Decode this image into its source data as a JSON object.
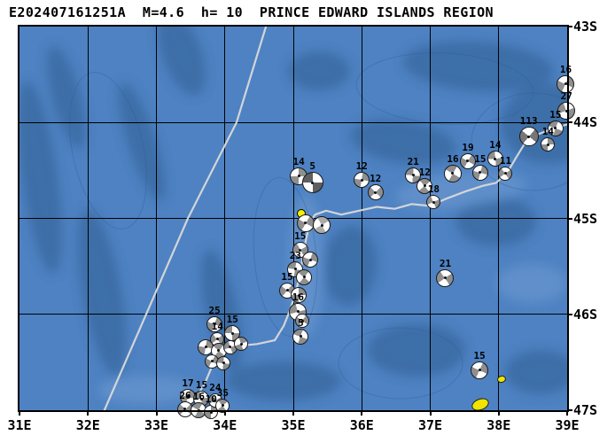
{
  "title": "E202407161251A  M=4.6  h= 10  PRINCE EDWARD ISLANDS REGION",
  "map": {
    "lon_min": 31,
    "lon_max": 39,
    "lat_min": 43,
    "lat_max": 47,
    "x_ticks": [
      {
        "lon": 31,
        "label": "31E"
      },
      {
        "lon": 32,
        "label": "32E"
      },
      {
        "lon": 33,
        "label": "33E"
      },
      {
        "lon": 34,
        "label": "34E"
      },
      {
        "lon": 35,
        "label": "35E"
      },
      {
        "lon": 36,
        "label": "36E"
      },
      {
        "lon": 37,
        "label": "37E"
      },
      {
        "lon": 38,
        "label": "38E"
      },
      {
        "lon": 39,
        "label": "39E"
      }
    ],
    "y_ticks": [
      {
        "lat": 43,
        "label": "43S"
      },
      {
        "lat": 44,
        "label": "44S"
      },
      {
        "lat": 45,
        "label": "45S"
      },
      {
        "lat": 46,
        "label": "46S"
      },
      {
        "lat": 47,
        "label": "47S"
      }
    ],
    "colors": {
      "ocean": "#4e82c2",
      "bathy_dark": "#38679f",
      "bathy_light": "#6f9bd2",
      "grid": "#000000",
      "ridge_line": "#d9d9d9",
      "frame": "#000000",
      "event": "#f8ef00",
      "island": "#f0e400",
      "ball_outline": "#1a1a1a",
      "label": "#000000"
    },
    "event_marker": {
      "lon": 35.12,
      "lat": 44.95,
      "size": 10
    },
    "islands": [
      {
        "name": "marion-island",
        "lon": 37.72,
        "lat": 46.93,
        "w": 18,
        "h": 11,
        "rot": -20
      },
      {
        "name": "prince-edward-island",
        "lon": 38.03,
        "lat": 46.67,
        "w": 8,
        "h": 6,
        "rot": -15
      }
    ],
    "ridge_lines": [
      {
        "name": "fracture-zone",
        "points": [
          [
            34.6,
            43.0
          ],
          [
            34.17,
            44.0
          ],
          [
            33.46,
            45.0
          ],
          [
            32.85,
            46.0
          ],
          [
            32.24,
            47.0
          ]
        ]
      },
      {
        "name": "plate-boundary",
        "points": [
          [
            33.37,
            47.0
          ],
          [
            33.59,
            46.86
          ],
          [
            33.72,
            46.7
          ],
          [
            33.82,
            46.53
          ],
          [
            33.95,
            46.4
          ],
          [
            34.18,
            46.33
          ],
          [
            34.47,
            46.31
          ],
          [
            34.73,
            46.27
          ],
          [
            34.86,
            46.12
          ],
          [
            34.95,
            45.96
          ],
          [
            35.03,
            45.79
          ],
          [
            35.09,
            45.6
          ],
          [
            35.14,
            45.4
          ],
          [
            35.19,
            45.2
          ],
          [
            35.25,
            45.03
          ],
          [
            35.32,
            44.96
          ],
          [
            35.48,
            44.92
          ],
          [
            35.7,
            44.96
          ],
          [
            35.96,
            44.92
          ],
          [
            36.22,
            44.88
          ],
          [
            36.48,
            44.9
          ],
          [
            36.73,
            44.85
          ],
          [
            36.99,
            44.87
          ],
          [
            37.25,
            44.79
          ],
          [
            37.51,
            44.72
          ],
          [
            37.77,
            44.66
          ],
          [
            37.96,
            44.63
          ],
          [
            38.12,
            44.53
          ],
          [
            38.25,
            44.37
          ],
          [
            38.38,
            44.22
          ],
          [
            38.55,
            44.13
          ],
          [
            38.77,
            44.07
          ],
          [
            39.0,
            44.02
          ]
        ]
      }
    ],
    "beachballs": [
      {
        "label": "16",
        "lon": 38.98,
        "lat": 43.6,
        "size": 20,
        "rot": 25,
        "tone": "#8f8f8f"
      },
      {
        "label": "27",
        "lon": 38.99,
        "lat": 43.88,
        "size": 20,
        "rot": 70,
        "tone": "#8f8f8f"
      },
      {
        "label": "15",
        "lon": 38.83,
        "lat": 44.06,
        "size": 18,
        "rot": 110,
        "tone": "#8f8f8f"
      },
      {
        "label": "113",
        "lon": 38.44,
        "lat": 44.15,
        "size": 22,
        "rot": 40,
        "tone": "#777777"
      },
      {
        "label": "14",
        "lon": 38.72,
        "lat": 44.23,
        "size": 16,
        "rot": 0,
        "tone": "#8f8f8f"
      },
      {
        "label": "19",
        "lon": 37.55,
        "lat": 44.4,
        "size": 18,
        "rot": 30,
        "tone": "#8f8f8f"
      },
      {
        "label": "14",
        "lon": 37.95,
        "lat": 44.38,
        "size": 18,
        "rot": 85,
        "tone": "#8f8f8f"
      },
      {
        "label": "16",
        "lon": 37.33,
        "lat": 44.53,
        "size": 20,
        "rot": 120,
        "tone": "#8f8f8f"
      },
      {
        "label": "15",
        "lon": 37.73,
        "lat": 44.52,
        "size": 18,
        "rot": 15,
        "tone": "#8f8f8f"
      },
      {
        "label": "11",
        "lon": 38.1,
        "lat": 44.53,
        "size": 16,
        "rot": 55,
        "tone": "#8f8f8f"
      },
      {
        "label": "21",
        "lon": 36.75,
        "lat": 44.55,
        "size": 18,
        "rot": 95,
        "tone": "#8f8f8f"
      },
      {
        "label": "12",
        "lon": 36.92,
        "lat": 44.66,
        "size": 18,
        "rot": 140,
        "tone": "#8f8f8f"
      },
      {
        "label": "18",
        "lon": 37.05,
        "lat": 44.83,
        "size": 16,
        "rot": 65,
        "tone": "#8f8f8f"
      },
      {
        "label": "12",
        "lon": 36.0,
        "lat": 44.6,
        "size": 18,
        "rot": 10,
        "tone": "#8f8f8f"
      },
      {
        "label": "12",
        "lon": 36.2,
        "lat": 44.73,
        "size": 18,
        "rot": 45,
        "tone": "#8f8f8f"
      },
      {
        "label": "14",
        "lon": 35.08,
        "lat": 44.56,
        "size": 20,
        "rot": 0,
        "tone": "#8f8f8f"
      },
      {
        "label": "5",
        "lon": 35.28,
        "lat": 44.63,
        "size": 24,
        "rot": 90,
        "tone": "#5f5f5f"
      },
      {
        "label": "",
        "lon": 35.18,
        "lat": 45.05,
        "size": 20,
        "rot": 30,
        "tone": "#8f8f8f"
      },
      {
        "label": "",
        "lon": 35.42,
        "lat": 45.07,
        "size": 20,
        "rot": 150,
        "tone": "#ababab"
      },
      {
        "label": "15",
        "lon": 35.1,
        "lat": 45.33,
        "size": 18,
        "rot": 60,
        "tone": "#8f8f8f"
      },
      {
        "label": "",
        "lon": 35.25,
        "lat": 45.43,
        "size": 18,
        "rot": 20,
        "tone": "#8f8f8f"
      },
      {
        "label": "23",
        "lon": 35.03,
        "lat": 45.53,
        "size": 18,
        "rot": 100,
        "tone": "#8f8f8f"
      },
      {
        "label": "",
        "lon": 35.16,
        "lat": 45.61,
        "size": 18,
        "rot": 130,
        "tone": "#8f8f8f"
      },
      {
        "label": "15",
        "lon": 34.91,
        "lat": 45.75,
        "size": 18,
        "rot": 40,
        "tone": "#8f8f8f"
      },
      {
        "label": "",
        "lon": 35.08,
        "lat": 45.8,
        "size": 18,
        "rot": 0,
        "tone": "#8f8f8f"
      },
      {
        "label": "16",
        "lon": 35.07,
        "lat": 45.97,
        "size": 20,
        "rot": 75,
        "tone": "#8f8f8f"
      },
      {
        "label": "",
        "lon": 35.13,
        "lat": 46.07,
        "size": 16,
        "rot": 35,
        "tone": "#8f8f8f"
      },
      {
        "label": "5",
        "lon": 35.11,
        "lat": 46.23,
        "size": 18,
        "rot": 110,
        "tone": "#8f8f8f"
      },
      {
        "label": "25",
        "lon": 33.85,
        "lat": 46.1,
        "size": 18,
        "rot": 20,
        "tone": "#8f8f8f"
      },
      {
        "label": "15",
        "lon": 34.11,
        "lat": 46.2,
        "size": 18,
        "rot": 90,
        "tone": "#8f8f8f"
      },
      {
        "label": "14",
        "lon": 33.89,
        "lat": 46.26,
        "size": 16,
        "rot": 50,
        "tone": "#8f8f8f"
      },
      {
        "label": "",
        "lon": 33.72,
        "lat": 46.34,
        "size": 18,
        "rot": 10,
        "tone": "#8f8f8f"
      },
      {
        "label": "",
        "lon": 33.91,
        "lat": 46.38,
        "size": 18,
        "rot": 130,
        "tone": "#8f8f8f"
      },
      {
        "label": "",
        "lon": 34.08,
        "lat": 46.34,
        "size": 16,
        "rot": 70,
        "tone": "#8f8f8f"
      },
      {
        "label": "",
        "lon": 34.24,
        "lat": 46.31,
        "size": 16,
        "rot": 160,
        "tone": "#8f8f8f"
      },
      {
        "label": "",
        "lon": 33.81,
        "lat": 46.49,
        "size": 16,
        "rot": 30,
        "tone": "#8f8f8f"
      },
      {
        "label": "",
        "lon": 33.98,
        "lat": 46.51,
        "size": 16,
        "rot": 95,
        "tone": "#8f8f8f"
      },
      {
        "label": "17",
        "lon": 33.46,
        "lat": 46.86,
        "size": 18,
        "rot": 15,
        "tone": "#8f8f8f"
      },
      {
        "label": "15",
        "lon": 33.66,
        "lat": 46.88,
        "size": 18,
        "rot": 80,
        "tone": "#8f8f8f"
      },
      {
        "label": "26",
        "lon": 33.42,
        "lat": 46.99,
        "size": 18,
        "rot": 45,
        "tone": "#8f8f8f"
      },
      {
        "label": "16",
        "lon": 33.62,
        "lat": 47.0,
        "size": 18,
        "rot": 120,
        "tone": "#8f8f8f"
      },
      {
        "label": "10",
        "lon": 33.8,
        "lat": 47.02,
        "size": 16,
        "rot": 0,
        "tone": "#8f8f8f"
      },
      {
        "label": "24",
        "lon": 33.86,
        "lat": 46.9,
        "size": 16,
        "rot": 60,
        "tone": "#8f8f8f"
      },
      {
        "label": "35",
        "lon": 33.97,
        "lat": 46.95,
        "size": 16,
        "rot": 140,
        "tone": "#8f8f8f"
      },
      {
        "label": "21",
        "lon": 37.22,
        "lat": 45.62,
        "size": 20,
        "rot": 55,
        "tone": "#8f8f8f"
      },
      {
        "label": "15",
        "lon": 37.72,
        "lat": 46.58,
        "size": 20,
        "rot": 25,
        "tone": "#8f8f8f"
      }
    ]
  }
}
